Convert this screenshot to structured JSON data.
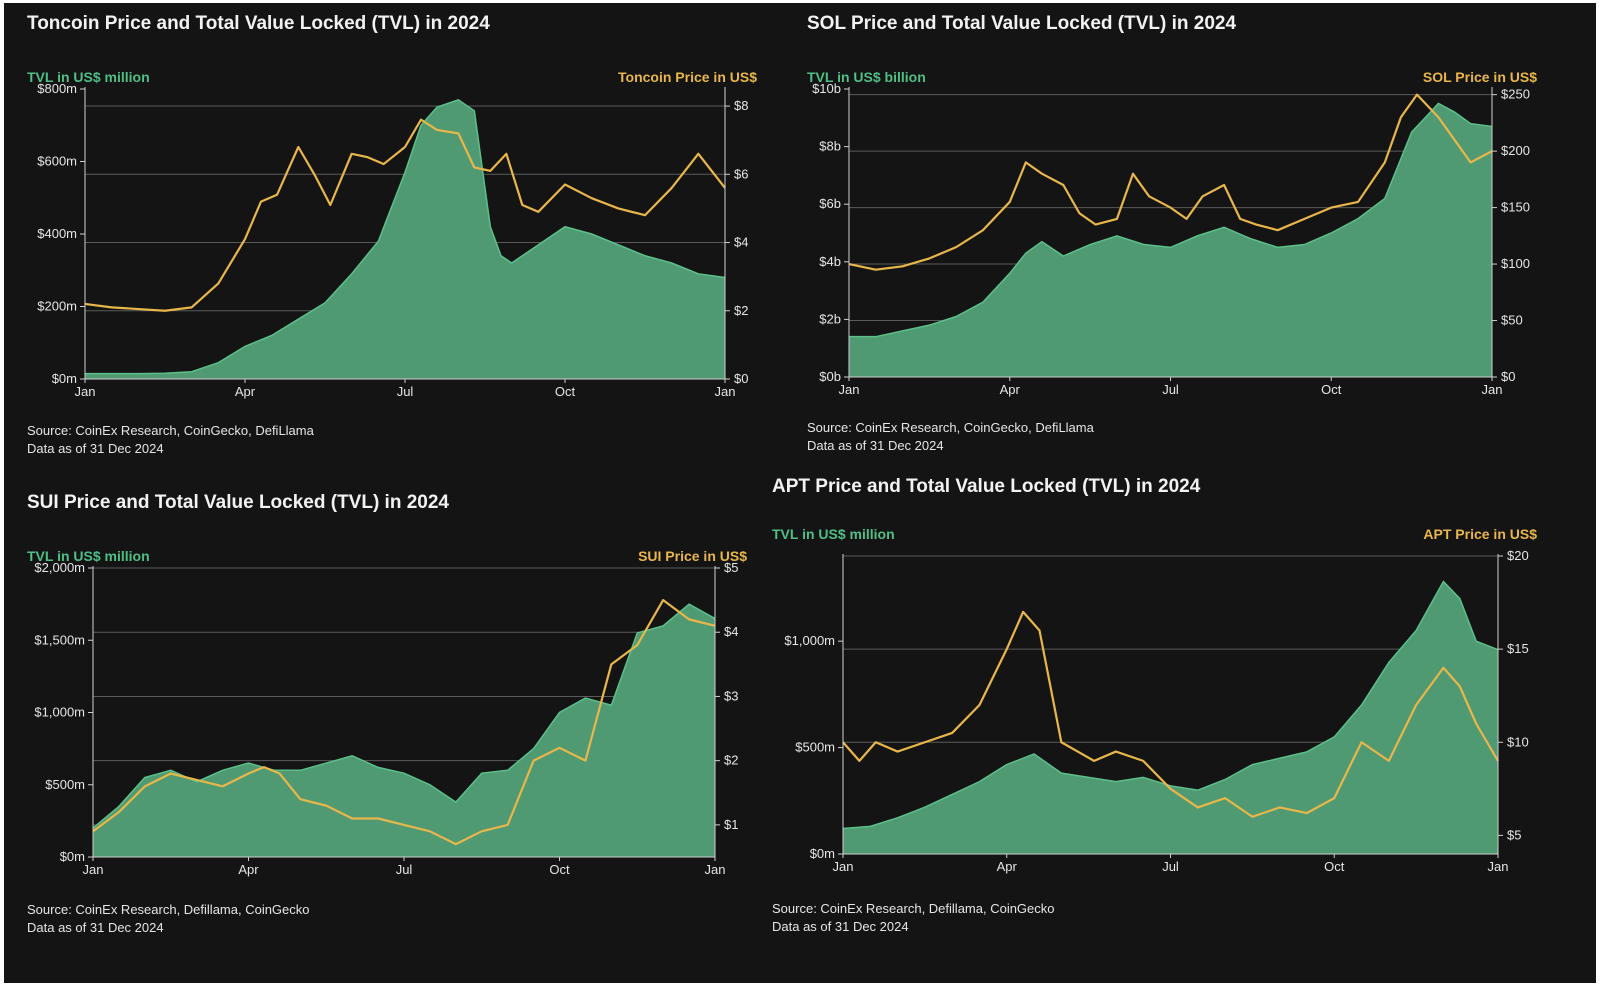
{
  "panels": [
    {
      "title": "Toncoin Price and Total Value Locked (TVL) in 2024",
      "left_axis_title": "TVL in US$ million",
      "right_axis_title": "Toncoin Price in US$",
      "source_line1": "Source: CoinEx Research, CoinGecko, DefiLlama",
      "source_line2": "Data as of 31 Dec 2024"
    },
    {
      "title": "SOL Price and Total Value Locked (TVL) in 2024",
      "left_axis_title": "TVL in US$ billion",
      "right_axis_title": "SOL Price in US$",
      "source_line1": "Source: CoinEx Research, CoinGecko, DefiLlama",
      "source_line2": "Data as of 31 Dec 2024"
    },
    {
      "title": "SUI Price and Total Value Locked (TVL) in 2024",
      "left_axis_title": "TVL in US$ million",
      "right_axis_title": "SUI Price in US$",
      "source_line1": "Source: CoinEx Research, Defillama, CoinGecko",
      "source_line2": "Data as of 31 Dec 2024"
    },
    {
      "title": "APT Price and Total Value Locked (TVL) in 2024",
      "left_axis_title": "TVL in US$ million",
      "right_axis_title": "APT Price in US$",
      "source_line1": "Source: CoinEx Research, Defillama, CoinGecko",
      "source_line2": "Data as of 31 Dec 2024"
    }
  ],
  "colors": {
    "tvl_fill": "#4f9a72",
    "tvl_line": "#5cc08a",
    "price_line": "#e8b64a",
    "background": "#141414",
    "grid": "#5a5a5a"
  },
  "chart_data": [
    {
      "type": "area",
      "x_ticks": [
        "Jan",
        "Apr",
        "Jul",
        "Oct",
        "Jan"
      ],
      "x_unit": "month",
      "left_ticks": [
        "$0m",
        "$200m",
        "$400m",
        "$600m",
        "$800m"
      ],
      "right_ticks": [
        "$0",
        "$2",
        "$4",
        "$6",
        "$8"
      ],
      "left_range": [
        0,
        800
      ],
      "right_range": [
        0,
        8.5
      ],
      "grid": true,
      "series": [
        {
          "axis": "left",
          "kind": "area",
          "x": [
            0,
            1,
            1.5,
            2,
            2.5,
            3,
            3.5,
            4,
            4.5,
            5,
            5.5,
            6,
            6.3,
            6.6,
            7,
            7.3,
            7.6,
            7.8,
            8,
            8.5,
            9,
            9.5,
            10,
            10.5,
            11,
            11.5,
            12
          ],
          "values": [
            15,
            15,
            16,
            20,
            45,
            90,
            120,
            165,
            210,
            290,
            380,
            570,
            700,
            750,
            770,
            740,
            420,
            340,
            320,
            370,
            420,
            400,
            370,
            340,
            320,
            290,
            280
          ]
        },
        {
          "axis": "right",
          "kind": "line",
          "x": [
            0,
            0.5,
            1,
            1.5,
            2,
            2.5,
            3,
            3.3,
            3.6,
            4,
            4.3,
            4.6,
            5,
            5.3,
            5.6,
            6,
            6.3,
            6.6,
            7,
            7.3,
            7.6,
            7.9,
            8.2,
            8.5,
            9,
            9.5,
            10,
            10.5,
            11,
            11.5,
            12
          ],
          "values": [
            2.2,
            2.1,
            2.05,
            2.0,
            2.1,
            2.8,
            4.1,
            5.2,
            5.4,
            6.8,
            6.0,
            5.1,
            6.6,
            6.5,
            6.3,
            6.8,
            7.6,
            7.3,
            7.2,
            6.2,
            6.1,
            6.6,
            5.1,
            4.9,
            5.7,
            5.3,
            5.0,
            4.8,
            5.6,
            6.6,
            5.6
          ]
        }
      ]
    },
    {
      "type": "area",
      "x_ticks": [
        "Jan",
        "Apr",
        "Jul",
        "Oct",
        "Jan"
      ],
      "x_unit": "month",
      "left_ticks": [
        "$0b",
        "$2b",
        "$4b",
        "$6b",
        "$8b",
        "$10b"
      ],
      "right_ticks": [
        "$0",
        "$50",
        "$100",
        "$150",
        "$200",
        "$250"
      ],
      "left_range": [
        0,
        10
      ],
      "right_range": [
        0,
        255
      ],
      "grid": true,
      "series": [
        {
          "axis": "left",
          "kind": "area",
          "x": [
            0,
            0.5,
            1,
            1.5,
            2,
            2.5,
            3,
            3.3,
            3.6,
            4,
            4.5,
            5,
            5.5,
            6,
            6.5,
            7,
            7.5,
            8,
            8.5,
            9,
            9.5,
            10,
            10.5,
            11,
            11.3,
            11.6,
            12
          ],
          "values": [
            1.4,
            1.4,
            1.6,
            1.8,
            2.1,
            2.6,
            3.6,
            4.3,
            4.7,
            4.2,
            4.6,
            4.9,
            4.6,
            4.5,
            4.9,
            5.2,
            4.8,
            4.5,
            4.6,
            5.0,
            5.5,
            6.2,
            8.5,
            9.5,
            9.2,
            8.8,
            8.7
          ]
        },
        {
          "axis": "right",
          "kind": "line",
          "x": [
            0,
            0.5,
            1,
            1.5,
            2,
            2.5,
            3,
            3.3,
            3.6,
            4,
            4.3,
            4.6,
            5,
            5.3,
            5.6,
            6,
            6.3,
            6.6,
            7,
            7.3,
            7.6,
            8,
            8.5,
            9,
            9.5,
            10,
            10.3,
            10.6,
            11,
            11.3,
            11.6,
            12
          ],
          "values": [
            100,
            95,
            98,
            105,
            115,
            130,
            155,
            190,
            180,
            170,
            145,
            135,
            140,
            180,
            160,
            150,
            140,
            160,
            170,
            140,
            135,
            130,
            140,
            150,
            155,
            190,
            230,
            250,
            230,
            210,
            190,
            200
          ]
        }
      ]
    },
    {
      "type": "area",
      "x_ticks": [
        "Jan",
        "Apr",
        "Jul",
        "Oct",
        "Jan"
      ],
      "x_unit": "month",
      "left_ticks": [
        "$0m",
        "$500m",
        "$1,000m",
        "$1,500m",
        "$2,000m"
      ],
      "right_ticks": [
        "$1",
        "$2",
        "$3",
        "$4",
        "$5"
      ],
      "left_range": [
        0,
        2000
      ],
      "right_range": [
        0.5,
        5
      ],
      "grid": true,
      "series": [
        {
          "axis": "left",
          "kind": "area",
          "x": [
            0,
            0.5,
            1,
            1.5,
            2,
            2.5,
            3,
            3.5,
            4,
            4.5,
            5,
            5.5,
            6,
            6.5,
            7,
            7.5,
            8,
            8.5,
            9,
            9.5,
            10,
            10.5,
            11,
            11.5,
            12
          ],
          "values": [
            200,
            350,
            550,
            600,
            520,
            600,
            650,
            600,
            600,
            650,
            700,
            620,
            580,
            500,
            380,
            580,
            600,
            750,
            1000,
            1100,
            1050,
            1550,
            1600,
            1750,
            1650
          ]
        },
        {
          "axis": "right",
          "kind": "line",
          "x": [
            0,
            0.5,
            1,
            1.5,
            2,
            2.5,
            3,
            3.3,
            3.6,
            4,
            4.5,
            5,
            5.5,
            6,
            6.5,
            7,
            7.5,
            8,
            8.5,
            9,
            9.5,
            10,
            10.5,
            11,
            11.5,
            12
          ],
          "values": [
            0.9,
            1.2,
            1.6,
            1.8,
            1.7,
            1.6,
            1.8,
            1.9,
            1.8,
            1.4,
            1.3,
            1.1,
            1.1,
            1.0,
            0.9,
            0.7,
            0.9,
            1.0,
            2.0,
            2.2,
            2.0,
            3.5,
            3.8,
            4.5,
            4.2,
            4.1
          ]
        }
      ]
    },
    {
      "type": "area",
      "x_ticks": [
        "Jan",
        "Apr",
        "Jul",
        "Oct",
        "Jan"
      ],
      "x_unit": "month",
      "left_ticks": [
        "$0m",
        "$500m",
        "$1,000m"
      ],
      "right_ticks": [
        "$5",
        "$10",
        "$15",
        "$20"
      ],
      "left_range": [
        0,
        1400
      ],
      "right_range": [
        4,
        20
      ],
      "grid": true,
      "series": [
        {
          "axis": "left",
          "kind": "area",
          "x": [
            0,
            0.5,
            1,
            1.5,
            2,
            2.5,
            3,
            3.5,
            4,
            4.5,
            5,
            5.5,
            6,
            6.5,
            7,
            7.5,
            8,
            8.5,
            9,
            9.5,
            10,
            10.5,
            11,
            11.3,
            11.6,
            12
          ],
          "values": [
            120,
            130,
            170,
            220,
            280,
            340,
            420,
            470,
            380,
            360,
            340,
            360,
            320,
            300,
            350,
            420,
            450,
            480,
            550,
            700,
            900,
            1050,
            1280,
            1200,
            1000,
            960
          ]
        },
        {
          "axis": "right",
          "kind": "line",
          "x": [
            0,
            0.3,
            0.6,
            1,
            1.5,
            2,
            2.5,
            3,
            3.3,
            3.6,
            4,
            4.3,
            4.6,
            5,
            5.5,
            6,
            6.5,
            7,
            7.5,
            8,
            8.5,
            9,
            9.5,
            10,
            10.5,
            11,
            11.3,
            11.6,
            12
          ],
          "values": [
            10,
            9,
            10,
            9.5,
            10,
            10.5,
            12,
            15,
            17,
            16,
            10,
            9.5,
            9,
            9.5,
            9,
            7.5,
            6.5,
            7,
            6,
            6.5,
            6.2,
            7,
            10,
            9,
            12,
            14,
            13,
            11,
            9
          ]
        }
      ]
    }
  ]
}
